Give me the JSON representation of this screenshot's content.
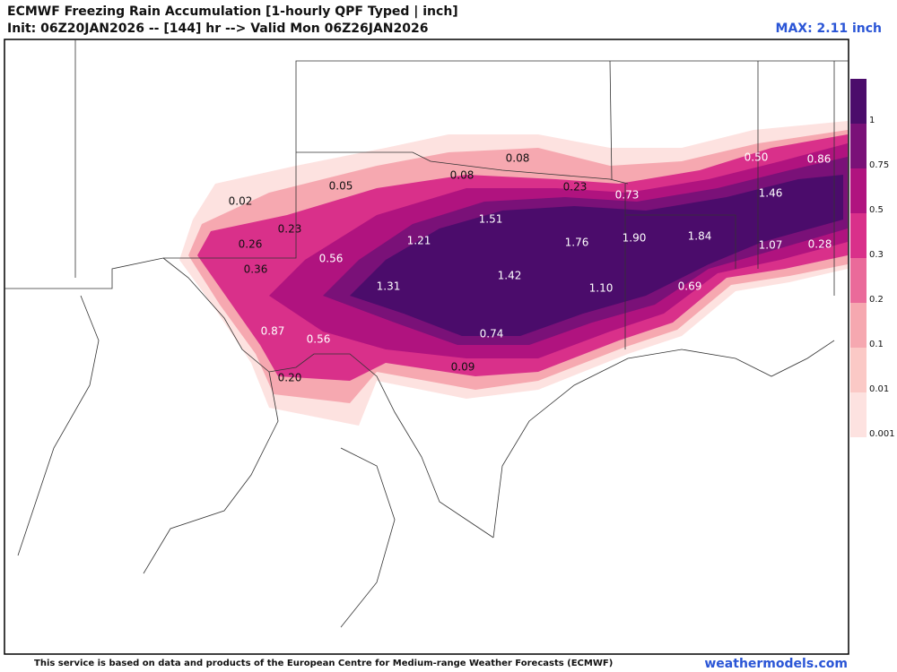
{
  "header": {
    "title": "ECMWF Freezing Rain Accumulation [1-hourly QPF Typed | inch]",
    "subtitle": "Init: 06Z20JAN2026 -- [144] hr --> Valid Mon 06Z26JAN2026",
    "max": "MAX: 2.11 inch"
  },
  "map": {
    "labels": [
      "0.08",
      "0.08",
      "0.05",
      "0.02",
      "0.23",
      "0.73",
      "0.50",
      "0.86",
      "1.46",
      "0.23",
      "1.51",
      "0.26",
      "1.21",
      "1.76",
      "1.90",
      "1.84",
      "1.07",
      "0.28",
      "0.36",
      "0.56",
      "1.42",
      "1.31",
      "1.10",
      "0.69",
      "0.87",
      "0.56",
      "0.74",
      "0.09",
      "0.20"
    ]
  },
  "colorbar": {
    "labels": [
      "1",
      "0.75",
      "0.5",
      "0.3",
      "0.2",
      "0.1",
      "0.01",
      "0.001"
    ]
  },
  "footer": {
    "note": "This service is based on data and products of the European Centre for Medium-range Weather Forecasts (ECMWF)",
    "site": "weathermodels.com"
  }
}
